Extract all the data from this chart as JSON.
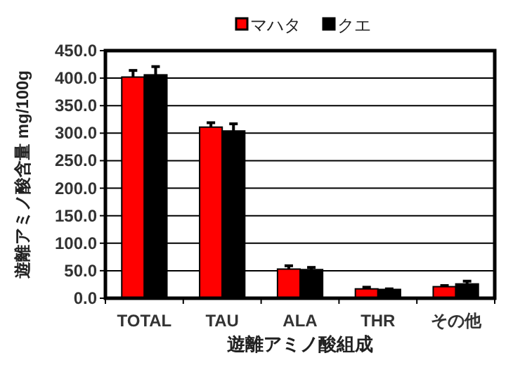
{
  "chart_data": {
    "type": "bar",
    "xlabel": "遊離アミノ酸組成",
    "ylabel": "遊離アミノ酸含量 mg/100g",
    "categories": [
      "TOTAL",
      "TAU",
      "ALA",
      "THR",
      "その他"
    ],
    "series": [
      {
        "name": "マハタ",
        "color": "#ff0000",
        "values": [
          402,
          311,
          53,
          17,
          21
        ],
        "errors": [
          12,
          8,
          6,
          3,
          2
        ]
      },
      {
        "name": "クエ",
        "color": "#000000",
        "values": [
          406,
          304,
          52,
          16,
          26
        ],
        "errors": [
          15,
          13,
          4,
          1,
          5
        ]
      }
    ],
    "ylim": [
      0,
      450
    ],
    "yticks": [
      {
        "value": 0,
        "label": "0.0"
      },
      {
        "value": 50,
        "label": "50.0"
      },
      {
        "value": 100,
        "label": "100.0"
      },
      {
        "value": 150,
        "label": "150.0"
      },
      {
        "value": 200,
        "label": "200.0"
      },
      {
        "value": 250,
        "label": "250.0"
      },
      {
        "value": 300,
        "label": "300.0"
      },
      {
        "value": 350,
        "label": "350.0"
      },
      {
        "value": 400,
        "label": "400.0"
      },
      {
        "value": 450,
        "label": "450.0"
      }
    ],
    "grid": "y",
    "legend": "top"
  }
}
